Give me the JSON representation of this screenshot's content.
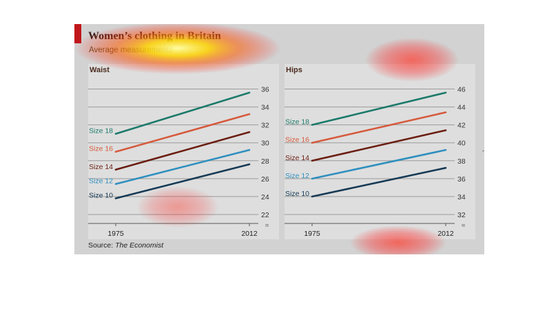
{
  "title": "Women’s clothing in Britain",
  "subtitle": "Average measurements",
  "source_label": "Source:",
  "source_publication": "The Economist",
  "colors": {
    "background": "#d2d2d2",
    "panel": "#dedede",
    "accent": "#c0161b",
    "Size 18": "#1b7a6a",
    "Size 16": "#d65a3c",
    "Size 14": "#6b1e12",
    "Size 12": "#2f8fbf",
    "Size 10": "#163a55"
  },
  "chart_data": [
    {
      "type": "line",
      "title": "Waist",
      "x": [
        "1975",
        "2012"
      ],
      "ylim": [
        21,
        36.5
      ],
      "yticks": [
        22,
        24,
        26,
        28,
        30,
        32,
        34,
        36
      ],
      "grid": true,
      "series": [
        {
          "name": "Size 18",
          "values": [
            31.0,
            35.6
          ]
        },
        {
          "name": "Size 16",
          "values": [
            29.0,
            33.2
          ]
        },
        {
          "name": "Size 14",
          "values": [
            27.0,
            31.2
          ]
        },
        {
          "name": "Size 12",
          "values": [
            25.4,
            29.2
          ]
        },
        {
          "name": "Size 10",
          "values": [
            23.8,
            27.6
          ]
        }
      ]
    },
    {
      "type": "line",
      "title": "Hips",
      "x": [
        "1975",
        "2012"
      ],
      "ylim": [
        31,
        46.5
      ],
      "yticks": [
        32,
        34,
        36,
        38,
        40,
        42,
        44,
        46
      ],
      "grid": true,
      "series": [
        {
          "name": "Size 18",
          "values": [
            42.0,
            45.6
          ]
        },
        {
          "name": "Size 16",
          "values": [
            40.0,
            43.4
          ]
        },
        {
          "name": "Size 14",
          "values": [
            38.0,
            41.4
          ]
        },
        {
          "name": "Size 12",
          "values": [
            36.0,
            39.2
          ]
        },
        {
          "name": "Size 10",
          "values": [
            34.0,
            37.2
          ]
        }
      ]
    }
  ]
}
